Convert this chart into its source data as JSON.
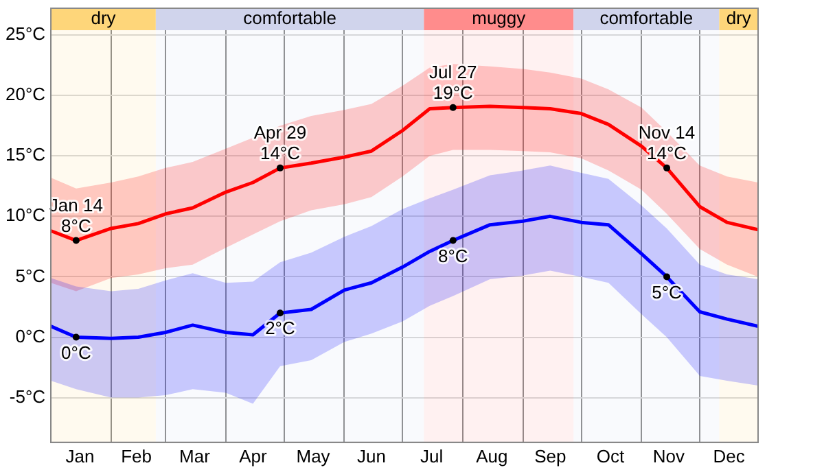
{
  "chart_data": {
    "type": "line",
    "x": [
      "--01-01",
      "--01-14",
      "--02-01",
      "--02-15",
      "--03-01",
      "--03-15",
      "--04-01",
      "--04-15",
      "--04-29",
      "--05-15",
      "--06-01",
      "--06-15",
      "--07-01",
      "--07-15",
      "--07-27",
      "--08-15",
      "--09-01",
      "--09-15",
      "--10-01",
      "--10-15",
      "--11-01",
      "--11-14",
      "--12-01",
      "--12-15",
      "--12-31"
    ],
    "series": [
      {
        "type": "line",
        "color": "#ff0000",
        "values": [
          8.8,
          8,
          9.0,
          9.4,
          10.2,
          10.7,
          12.0,
          12.8,
          14,
          14.4,
          14.9,
          15.4,
          17.1,
          18.9,
          19,
          19.1,
          19.0,
          18.9,
          18.5,
          17.6,
          15.8,
          14,
          10.8,
          9.5,
          8.9
        ],
        "upper": [
          13.2,
          12.3,
          12.8,
          13.3,
          14.0,
          14.5,
          15.6,
          16.5,
          17.5,
          18.3,
          18.8,
          19.3,
          20.8,
          22.3,
          22.6,
          22.4,
          22.2,
          21.9,
          21.4,
          20.5,
          19.0,
          17.0,
          14.2,
          13.3,
          12.8
        ],
        "lower": [
          4.5,
          3.8,
          4.9,
          5.2,
          5.7,
          6.0,
          7.4,
          8.5,
          9.6,
          10.5,
          11.0,
          11.6,
          13.3,
          15.0,
          15.5,
          15.5,
          15.4,
          15.3,
          14.8,
          13.8,
          12.2,
          10.2,
          7.3,
          6.0,
          5.0
        ]
      },
      {
        "type": "line",
        "color": "#0000ff",
        "values": [
          0.9,
          0,
          -0.1,
          0.0,
          0.4,
          1.0,
          0.4,
          0.2,
          2,
          2.3,
          3.9,
          4.5,
          5.8,
          7.1,
          8,
          9.3,
          9.6,
          10.0,
          9.5,
          9.3,
          6.9,
          5,
          2.1,
          1.5,
          0.9
        ],
        "upper": [
          4.9,
          4.2,
          3.8,
          4.0,
          4.7,
          5.3,
          4.5,
          4.6,
          6.2,
          7.0,
          8.3,
          9.2,
          10.6,
          11.5,
          12.2,
          13.4,
          13.8,
          14.2,
          13.6,
          13.1,
          10.9,
          9.0,
          6.0,
          5.2,
          4.8
        ],
        "lower": [
          -3.6,
          -4.3,
          -5.0,
          -5.0,
          -4.8,
          -4.3,
          -4.6,
          -5.5,
          -2.4,
          -1.9,
          -0.4,
          0.3,
          1.3,
          2.6,
          3.4,
          4.8,
          5.1,
          5.5,
          5.0,
          4.5,
          1.9,
          0.0,
          -3.2,
          -3.6,
          -4.0
        ]
      }
    ],
    "xlim": [
      "--01-01",
      "--12-31"
    ],
    "xticks": [
      {
        "value": "--01-16",
        "label": "Jan"
      },
      {
        "value": "--02-01",
        "label": null
      },
      {
        "value": "--02-14",
        "label": "Feb"
      },
      {
        "value": "--03-01",
        "label": null
      },
      {
        "value": "--03-16",
        "label": "Mar"
      },
      {
        "value": "--04-01",
        "label": null
      },
      {
        "value": "--04-15",
        "label": "Apr"
      },
      {
        "value": "--05-01",
        "label": null
      },
      {
        "value": "--05-16",
        "label": "May"
      },
      {
        "value": "--06-01",
        "label": null
      },
      {
        "value": "--06-15",
        "label": "Jun"
      },
      {
        "value": "--07-01",
        "label": null
      },
      {
        "value": "--07-16",
        "label": "Jul"
      },
      {
        "value": "--08-01",
        "label": null
      },
      {
        "value": "--08-16",
        "label": "Aug"
      },
      {
        "value": "--09-01",
        "label": null
      },
      {
        "value": "--09-15",
        "label": "Sep"
      },
      {
        "value": "--10-01",
        "label": null
      },
      {
        "value": "--10-16",
        "label": "Oct"
      },
      {
        "value": "--11-01",
        "label": null
      },
      {
        "value": "--11-15",
        "label": "Nov"
      },
      {
        "value": "--12-01",
        "label": null
      },
      {
        "value": "--12-16",
        "label": "Dec"
      }
    ],
    "ylim": [
      -8.7,
      25.4
    ],
    "yticks": [
      {
        "value": -5,
        "label": "-5°C"
      },
      {
        "value": 0,
        "label": "0°C"
      },
      {
        "value": 5,
        "label": "5°C"
      },
      {
        "value": 10,
        "label": "10°C"
      },
      {
        "value": 15,
        "label": "15°C"
      },
      {
        "value": 20,
        "label": "20°C"
      },
      {
        "value": 25,
        "label": "25°C"
      }
    ],
    "grid": true,
    "bands": [
      {
        "axis": "x",
        "from": "--01-01",
        "to": "--02-24",
        "label": "dry",
        "color": "#fed67a"
      },
      {
        "axis": "x",
        "from": "--02-24",
        "to": "--07-12",
        "label": "comfortable",
        "color": "#d0d4ec"
      },
      {
        "axis": "x",
        "from": "--07-12",
        "to": "--09-27",
        "label": "muggy",
        "color": "#ff8c8c"
      },
      {
        "axis": "x",
        "from": "--09-27",
        "to": "--12-11",
        "label": "comfortable",
        "color": "#d0d4ec"
      },
      {
        "axis": "x",
        "from": "--12-11",
        "to": "--12-31",
        "label": "dry",
        "color": "#fed67a"
      }
    ],
    "annotations": [
      {
        "text": "Jan 14\n8°C",
        "x": "--01-14",
        "y": 8
      },
      {
        "text": "Apr 29\n14°C",
        "x": "--04-29",
        "y": 14
      },
      {
        "text": "Jul 27\n19°C",
        "x": "--07-27",
        "y": 19
      },
      {
        "text": "Nov 14\n14°C",
        "x": "--11-14",
        "y": 14
      },
      {
        "text": "0°C",
        "x": "--01-14",
        "y": 0
      },
      {
        "text": "2°C",
        "x": "--04-29",
        "y": 2
      },
      {
        "text": "8°C",
        "x": "--07-27",
        "y": 8
      },
      {
        "text": "5°C",
        "x": "--11-14",
        "y": 5
      }
    ]
  }
}
